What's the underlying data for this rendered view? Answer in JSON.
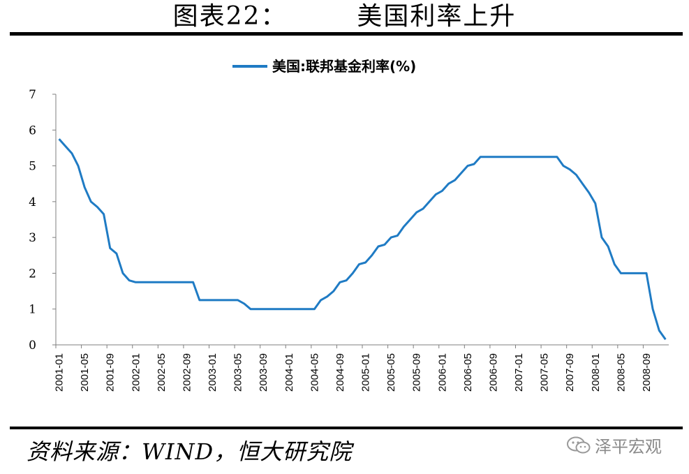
{
  "header": {
    "figure_label": "图表22：",
    "title": "美国利率上升"
  },
  "footer": {
    "source": "资料来源：WIND，恒大研究院",
    "watermark": "泽平宏观"
  },
  "colors": {
    "series": "#1f7bc4",
    "axis": "#7f7f7f",
    "rule": "#000000"
  },
  "chart_data": {
    "type": "line",
    "title": "",
    "xlabel": "",
    "ylabel": "",
    "ylim": [
      0,
      7
    ],
    "yticks": [
      0,
      1,
      2,
      3,
      4,
      5,
      6,
      7
    ],
    "grid": false,
    "legend": "top-center",
    "x_tick_labels": [
      "2001-01",
      "2001-05",
      "2001-09",
      "2002-01",
      "2002-05",
      "2002-09",
      "2003-01",
      "2003-05",
      "2003-09",
      "2004-01",
      "2004-05",
      "2004-09",
      "2005-01",
      "2005-05",
      "2005-09",
      "2006-01",
      "2006-05",
      "2006-09",
      "2007-01",
      "2007-05",
      "2007-09",
      "2008-01",
      "2008-05",
      "2008-09"
    ],
    "series": [
      {
        "name": "美国:联邦基金利率(%)",
        "x": [
          "2001-01",
          "2001-02",
          "2001-03",
          "2001-04",
          "2001-05",
          "2001-06",
          "2001-07",
          "2001-08",
          "2001-09",
          "2001-10",
          "2001-11",
          "2001-12",
          "2002-01",
          "2002-02",
          "2002-03",
          "2002-04",
          "2002-05",
          "2002-06",
          "2002-07",
          "2002-08",
          "2002-09",
          "2002-10",
          "2002-11",
          "2002-12",
          "2003-01",
          "2003-02",
          "2003-03",
          "2003-04",
          "2003-05",
          "2003-06",
          "2003-07",
          "2003-08",
          "2003-09",
          "2003-10",
          "2003-11",
          "2003-12",
          "2004-01",
          "2004-02",
          "2004-03",
          "2004-04",
          "2004-05",
          "2004-06",
          "2004-07",
          "2004-08",
          "2004-09",
          "2004-10",
          "2004-11",
          "2004-12",
          "2005-01",
          "2005-02",
          "2005-03",
          "2005-04",
          "2005-05",
          "2005-06",
          "2005-07",
          "2005-08",
          "2005-09",
          "2005-10",
          "2005-11",
          "2005-12",
          "2006-01",
          "2006-02",
          "2006-03",
          "2006-04",
          "2006-05",
          "2006-06",
          "2006-07",
          "2006-08",
          "2006-09",
          "2006-10",
          "2006-11",
          "2006-12",
          "2007-01",
          "2007-02",
          "2007-03",
          "2007-04",
          "2007-05",
          "2007-06",
          "2007-07",
          "2007-08",
          "2007-09",
          "2007-10",
          "2007-11",
          "2007-12",
          "2008-01",
          "2008-02",
          "2008-03",
          "2008-04",
          "2008-05",
          "2008-06",
          "2008-07",
          "2008-08",
          "2008-09",
          "2008-10",
          "2008-11",
          "2008-12"
        ],
        "values": [
          5.75,
          5.55,
          5.35,
          5.0,
          4.4,
          4.0,
          3.85,
          3.65,
          2.7,
          2.55,
          2.0,
          1.8,
          1.75,
          1.75,
          1.75,
          1.75,
          1.75,
          1.75,
          1.75,
          1.75,
          1.75,
          1.75,
          1.25,
          1.25,
          1.25,
          1.25,
          1.25,
          1.25,
          1.25,
          1.15,
          1.0,
          1.0,
          1.0,
          1.0,
          1.0,
          1.0,
          1.0,
          1.0,
          1.0,
          1.0,
          1.0,
          1.25,
          1.35,
          1.5,
          1.75,
          1.8,
          2.0,
          2.25,
          2.3,
          2.5,
          2.75,
          2.8,
          3.0,
          3.05,
          3.3,
          3.5,
          3.7,
          3.8,
          4.0,
          4.2,
          4.3,
          4.5,
          4.6,
          4.8,
          5.0,
          5.05,
          5.25,
          5.25,
          5.25,
          5.25,
          5.25,
          5.25,
          5.25,
          5.25,
          5.25,
          5.25,
          5.25,
          5.25,
          5.25,
          5.0,
          4.9,
          4.75,
          4.5,
          4.25,
          3.95,
          3.0,
          2.75,
          2.25,
          2.0,
          2.0,
          2.0,
          2.0,
          2.0,
          1.0,
          0.4,
          0.15
        ]
      }
    ]
  }
}
